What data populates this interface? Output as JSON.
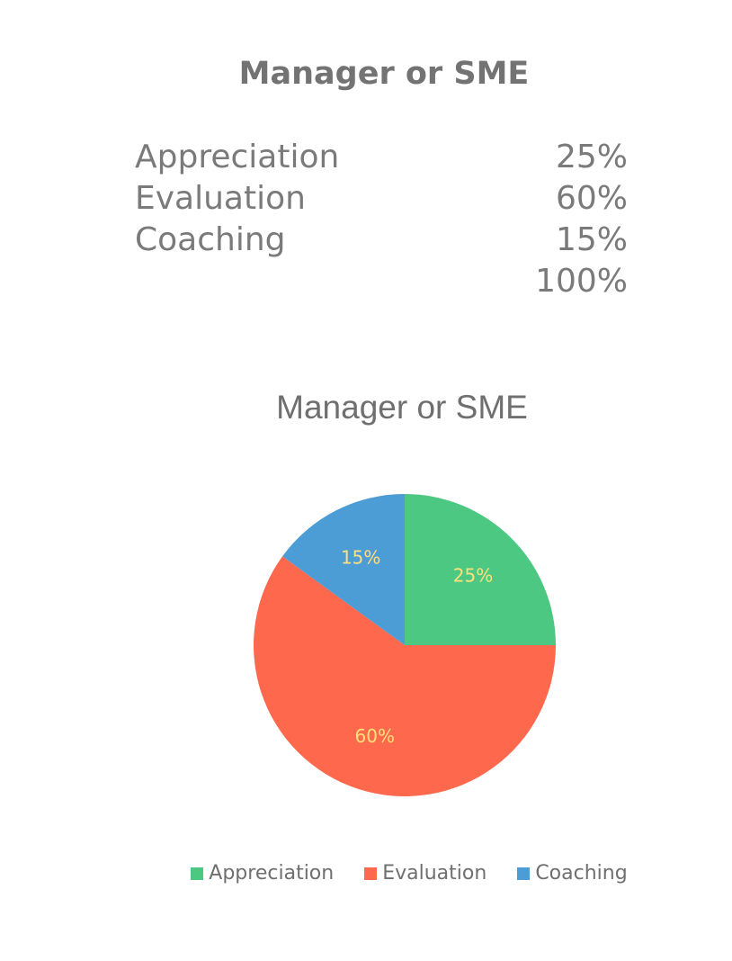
{
  "page": {
    "title": "Manager or SME"
  },
  "summary": {
    "rows": [
      {
        "label": "Appreciation",
        "value": "25%"
      },
      {
        "label": "Evaluation",
        "value": "60%"
      },
      {
        "label": "Coaching",
        "value": "15%"
      }
    ],
    "total": "100%"
  },
  "chart_data": {
    "type": "pie",
    "title": "Manager or SME",
    "categories": [
      "Appreciation",
      "Evaluation",
      "Coaching"
    ],
    "values": [
      25,
      60,
      15
    ],
    "data_labels": [
      "25%",
      "60%",
      "15%"
    ],
    "colors": [
      "#4dc882",
      "#fe684d",
      "#4c9cd6"
    ],
    "legend_position": "bottom"
  }
}
